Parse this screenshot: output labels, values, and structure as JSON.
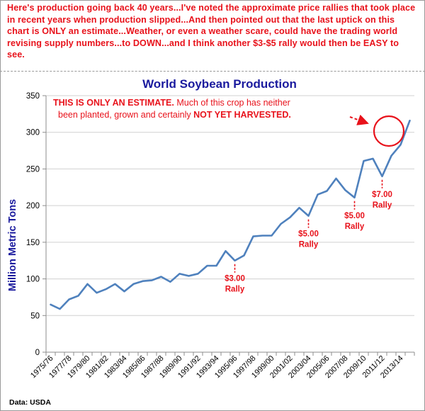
{
  "header": {
    "commentary": "Here's production going back 40 years...I've noted the approximate price rallies that took place in recent years when production slipped...And then pointed out that the last uptick on this chart is ONLY an estimate...Weather, or even a weather scare, could have the trading world revising supply numbers...to DOWN...and I think another $3-$5 rally would then be EASY to see."
  },
  "chart_data": {
    "type": "line",
    "title": "World Soybean Production",
    "ylabel": "Million Metric Tons",
    "xlabel": "",
    "ylim": [
      0,
      350
    ],
    "yticks": [
      0,
      50,
      100,
      150,
      200,
      250,
      300,
      350
    ],
    "grid": "horizontal",
    "legend": "none",
    "line_color": "#4f81bd",
    "x": [
      "1975/76",
      "1976/77",
      "1977/78",
      "1978/79",
      "1979/80",
      "1980/81",
      "1981/82",
      "1982/83",
      "1983/84",
      "1984/85",
      "1985/86",
      "1986/87",
      "1987/88",
      "1988/89",
      "1989/90",
      "1990/91",
      "1991/92",
      "1992/93",
      "1993/94",
      "1994/95",
      "1995/96",
      "1996/97",
      "1997/98",
      "1998/99",
      "1999/00",
      "2000/01",
      "2001/02",
      "2002/03",
      "2003/04",
      "2004/05",
      "2005/06",
      "2006/07",
      "2007/08",
      "2008/09",
      "2009/10",
      "2010/11",
      "2011/12",
      "2012/13",
      "2013/14",
      "2014/15"
    ],
    "x_tick_labels": [
      "1975/76",
      "1977/78",
      "1979/80",
      "1981/82",
      "1983/84",
      "1985/86",
      "1987/88",
      "1989/90",
      "1991/92",
      "1993/94",
      "1995/96",
      "1997/98",
      "1999/00",
      "2001/02",
      "2003/04",
      "2005/06",
      "2007/08",
      "2009/10",
      "2011/12",
      "2013/14"
    ],
    "series": [
      {
        "values": [
          65,
          59,
          72,
          77,
          93,
          81,
          86,
          93,
          83,
          93,
          97,
          98,
          103,
          96,
          107,
          104,
          107,
          118,
          118,
          138,
          125,
          132,
          158,
          159,
          159,
          175,
          184,
          197,
          186,
          215,
          220,
          237,
          221,
          211,
          261,
          264,
          240,
          268,
          283,
          316
        ]
      }
    ],
    "annotations": [
      {
        "text": "$3.00 Rally",
        "line1": "$3.00",
        "line2": "Rally",
        "x": "1995/96"
      },
      {
        "text": "$5.00 Rally",
        "line1": "$5.00",
        "line2": "Rally",
        "x": "2003/04"
      },
      {
        "text": "$5.00 Rally",
        "line1": "$5.00",
        "line2": "Rally",
        "x": "2008/09"
      },
      {
        "text": "$7.00 Rally",
        "line1": "$7.00",
        "line2": "Rally",
        "x": "2011/12"
      }
    ],
    "estimate_note": {
      "line1_bold": "THIS IS ONLY AN ESTIMATE.",
      "line1_rest": " Much of this crop has neither",
      "line2_rest": "been planted, grown and certainly ",
      "line2_bold": "NOT YET HARVESTED.",
      "highlight_color": "#e8121b"
    },
    "source": "Data: USDA"
  }
}
